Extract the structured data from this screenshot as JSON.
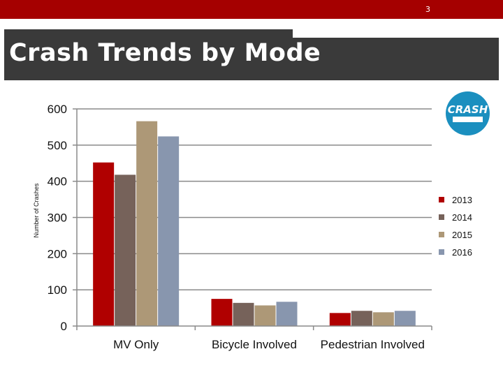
{
  "slide": {
    "number": "3",
    "title": "Crash Trends by Mode",
    "logo_text": "CRASH"
  },
  "colors": {
    "header_red": "#a50000",
    "title_band": "#3a3a3a",
    "logo_blue": "#1b8fbf"
  },
  "chart_data": {
    "type": "bar",
    "categories": [
      "MV Only",
      "Bicycle Involved",
      "Pedestrian Involved"
    ],
    "series": [
      {
        "name": "2013",
        "color": "#b00000",
        "values": [
          452,
          75,
          36
        ]
      },
      {
        "name": "2014",
        "color": "#76625a",
        "values": [
          418,
          64,
          42
        ]
      },
      {
        "name": "2015",
        "color": "#ad9877",
        "values": [
          566,
          57,
          38
        ]
      },
      {
        "name": "2016",
        "color": "#8896ae",
        "values": [
          524,
          67,
          42
        ]
      }
    ],
    "ylabel": "Number of Crashes",
    "ylim": [
      0,
      600
    ],
    "yticks": [
      0,
      100,
      200,
      300,
      400,
      500,
      600
    ],
    "grid": true,
    "legend": "right"
  }
}
